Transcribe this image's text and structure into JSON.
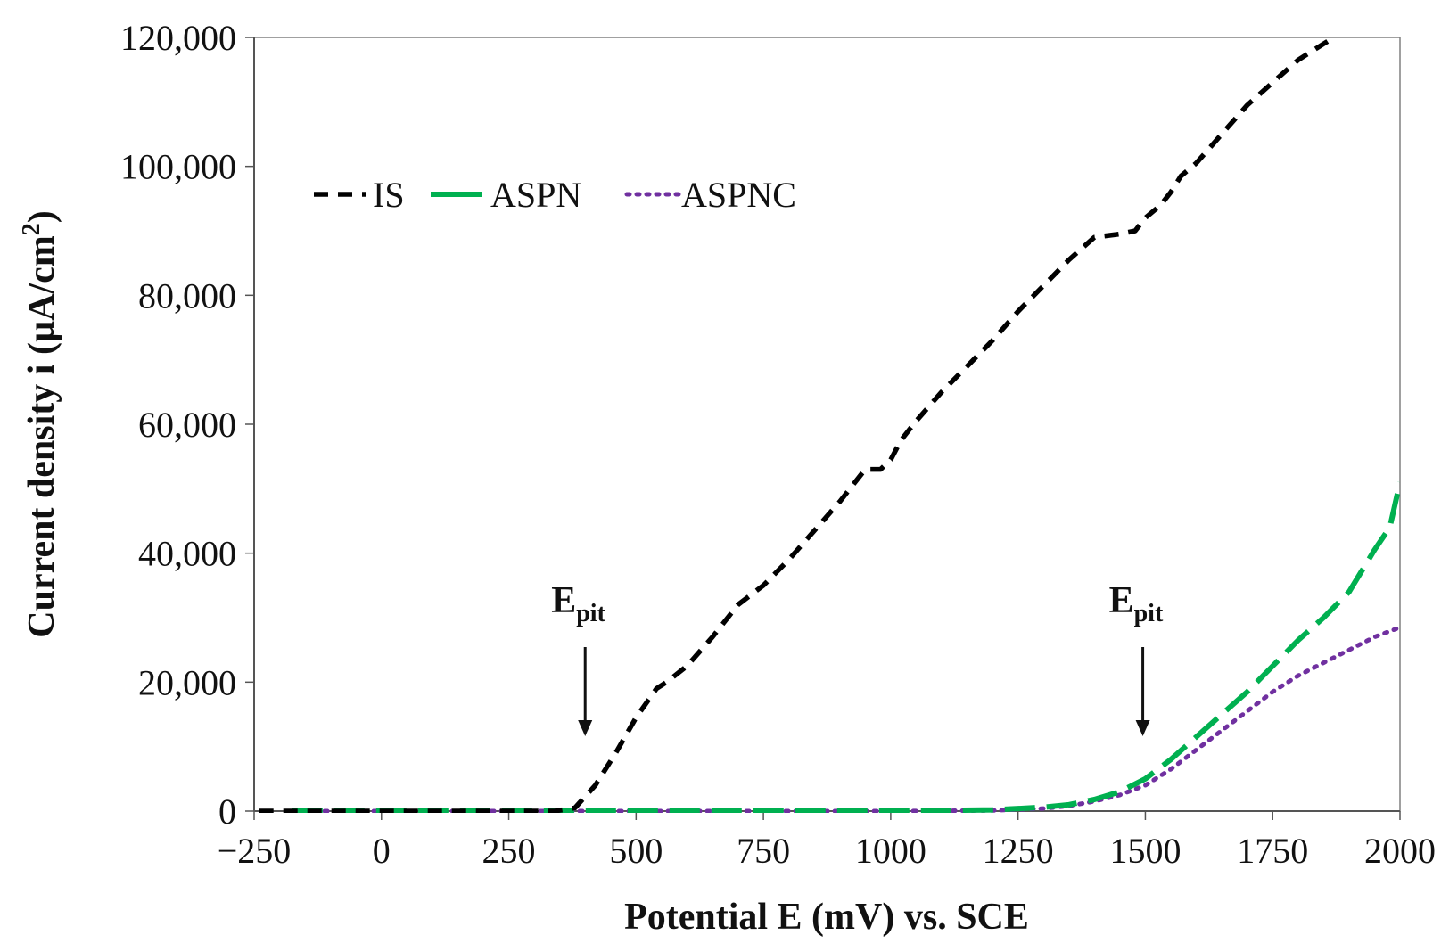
{
  "chart_data": {
    "type": "line",
    "title": "",
    "xlabel": "Potential E (mV) vs. SCE",
    "ylabel": "Current density i (µA/cm²)",
    "ylabel_parts": {
      "main": "Current density i (µA/cm",
      "sup": "2",
      "end": ")"
    },
    "xlim": [
      -250,
      2000
    ],
    "ylim": [
      0,
      120000
    ],
    "x_ticks": [
      -250,
      0,
      250,
      500,
      750,
      1000,
      1250,
      1500,
      1750,
      2000
    ],
    "x_tick_labels": [
      "−250",
      "0",
      "250",
      "500",
      "750",
      "1000",
      "1250",
      "1500",
      "1750",
      "2000"
    ],
    "y_ticks": [
      0,
      20000,
      40000,
      60000,
      80000,
      100000,
      120000
    ],
    "y_tick_labels": [
      "0",
      "20,000",
      "40,000",
      "60,000",
      "80,000",
      "100,000",
      "120,000"
    ],
    "grid": false,
    "legend_position": "top-left",
    "series": [
      {
        "name": "IS",
        "color": "#000000",
        "style": "dashed",
        "x": [
          -240,
          0,
          200,
          340,
          380,
          420,
          460,
          500,
          540,
          560,
          600,
          650,
          700,
          750,
          800,
          850,
          900,
          950,
          980,
          1000,
          1020,
          1050,
          1100,
          1150,
          1200,
          1250,
          1300,
          1350,
          1400,
          1450,
          1480,
          1500,
          1530,
          1550,
          1570,
          1600,
          1650,
          1700,
          1750,
          1800,
          1850,
          1870
        ],
        "y": [
          0,
          0,
          0,
          0,
          500,
          4000,
          9000,
          14500,
          19000,
          20000,
          22500,
          27000,
          32000,
          35000,
          39000,
          43500,
          48000,
          53000,
          53000,
          54500,
          57500,
          60500,
          65000,
          69000,
          73000,
          77500,
          81500,
          85500,
          89000,
          89500,
          90000,
          92000,
          94000,
          96000,
          98500,
          100500,
          105000,
          109500,
          113000,
          116500,
          119000,
          120000
        ]
      },
      {
        "name": "ASPN",
        "color": "#00b050",
        "style": "long-dash",
        "x": [
          -175,
          0,
          500,
          1000,
          1200,
          1300,
          1350,
          1400,
          1450,
          1500,
          1550,
          1600,
          1650,
          1700,
          1750,
          1800,
          1850,
          1900,
          1950,
          1980,
          2000
        ],
        "y": [
          0,
          0,
          0,
          0,
          200,
          600,
          1000,
          1800,
          3000,
          5000,
          8000,
          11500,
          15000,
          18500,
          22500,
          26500,
          30000,
          34000,
          40500,
          44000,
          51000
        ]
      },
      {
        "name": "ASPNC",
        "color": "#7030a0",
        "style": "dotted",
        "x": [
          -150,
          0,
          500,
          1000,
          1200,
          1300,
          1350,
          1400,
          1450,
          1500,
          1550,
          1600,
          1650,
          1700,
          1750,
          1800,
          1850,
          1900,
          1950,
          2000
        ],
        "y": [
          0,
          0,
          0,
          0,
          100,
          400,
          800,
          1500,
          2500,
          4000,
          6500,
          9500,
          12500,
          15500,
          18500,
          21000,
          23000,
          25000,
          27000,
          28500
        ]
      }
    ],
    "annotations": [
      {
        "label": "E",
        "sub": "pit",
        "x": 400,
        "arrow_from_y": 20000,
        "arrow_to_y": 11000
      },
      {
        "label": "E",
        "sub": "pit",
        "x": 1495,
        "arrow_from_y": 20000,
        "arrow_to_y": 11000
      }
    ]
  }
}
